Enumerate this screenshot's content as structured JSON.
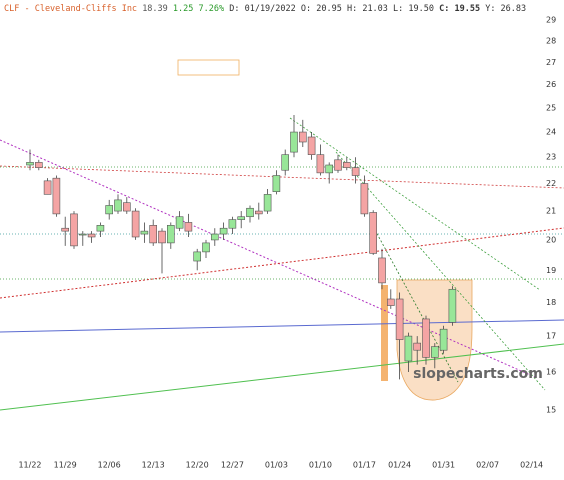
{
  "chart_data": {
    "type": "candlestick",
    "header": {
      "symbol": "CLF - Cleveland-Cliffs Inc",
      "last": "18.39",
      "change": "1.25",
      "change_pct": "7.26%",
      "date": "D: 01/19/2022",
      "open": "O: 20.95",
      "high": "H: 21.03",
      "low": "L: 19.50",
      "close": "C: 19.55",
      "y": "Y: 26.83"
    },
    "watermark": "slopecharts.com",
    "categories": [
      "11/22",
      null,
      null,
      null,
      "11/29",
      null,
      null,
      null,
      null,
      "12/06",
      null,
      null,
      null,
      null,
      "12/13",
      null,
      null,
      null,
      null,
      "12/20",
      null,
      null,
      null,
      "12/27",
      null,
      null,
      null,
      null,
      "01/03",
      null,
      null,
      null,
      null,
      "01/10",
      null,
      null,
      null,
      null,
      "01/17",
      null,
      null,
      null,
      "01/24",
      null,
      null,
      null,
      null,
      "01/31",
      null,
      null,
      null,
      null,
      "02/07",
      null,
      null,
      null,
      null,
      "02/14",
      null
    ],
    "open": [
      22.7,
      22.8,
      22.1,
      22.2,
      20.4,
      20.9,
      20.2,
      20.2,
      20.3,
      20.9,
      21.0,
      21.3,
      21.0,
      20.2,
      20.5,
      20.3,
      19.9,
      20.4,
      20.6,
      19.3,
      19.6,
      20.0,
      20.2,
      20.4,
      20.7,
      20.8,
      21.0,
      21.0,
      21.7,
      22.5,
      23.2,
      24.0,
      23.8,
      23.1,
      22.4,
      22.9,
      22.8,
      22.6,
      22.0,
      20.95,
      19.4,
      18.1,
      18.1,
      16.3,
      16.8,
      17.5,
      16.4,
      16.6,
      17.4,
      null,
      null,
      null,
      null,
      null,
      null,
      null,
      null,
      null,
      null
    ],
    "high": [
      23.3,
      22.9,
      22.2,
      22.3,
      20.8,
      21.0,
      20.3,
      20.3,
      20.6,
      21.4,
      21.6,
      21.5,
      21.1,
      20.6,
      20.7,
      20.4,
      20.6,
      21.0,
      20.9,
      19.7,
      20.0,
      20.4,
      20.6,
      20.8,
      21.0,
      21.2,
      21.3,
      21.8,
      22.5,
      23.3,
      24.7,
      24.5,
      24.0,
      23.5,
      22.8,
      23.1,
      23.0,
      23.0,
      22.3,
      21.03,
      19.7,
      18.4,
      18.3,
      17.1,
      17.0,
      17.6,
      16.8,
      17.3,
      18.5,
      null,
      null,
      null,
      null,
      null,
      null,
      null,
      null,
      null,
      null
    ],
    "low": [
      22.5,
      22.5,
      21.6,
      20.8,
      19.8,
      19.7,
      19.8,
      19.9,
      20.1,
      20.7,
      20.9,
      20.9,
      20.0,
      19.9,
      19.8,
      18.9,
      19.7,
      20.3,
      20.1,
      19.0,
      19.4,
      19.8,
      20.0,
      20.2,
      20.4,
      20.6,
      20.7,
      20.9,
      21.6,
      22.3,
      23.0,
      23.4,
      22.9,
      22.3,
      22.0,
      22.4,
      22.5,
      22.0,
      20.8,
      19.5,
      18.4,
      17.8,
      15.8,
      16.0,
      16.2,
      16.2,
      16.1,
      16.5,
      17.3,
      null,
      null,
      null,
      null,
      null,
      null,
      null,
      null,
      null,
      null
    ],
    "close": [
      22.8,
      22.6,
      21.6,
      20.9,
      20.3,
      19.8,
      20.2,
      20.1,
      20.5,
      21.2,
      21.4,
      21.0,
      20.1,
      20.3,
      19.9,
      19.9,
      20.5,
      20.8,
      20.3,
      19.6,
      19.9,
      20.2,
      20.4,
      20.7,
      20.8,
      21.1,
      20.9,
      21.6,
      22.3,
      23.1,
      24.0,
      23.6,
      23.1,
      22.4,
      22.7,
      22.5,
      22.6,
      22.3,
      20.9,
      19.55,
      18.6,
      17.9,
      16.9,
      17.0,
      16.6,
      16.4,
      16.7,
      17.2,
      18.4,
      null,
      null,
      null,
      null,
      null,
      null,
      null,
      null,
      null,
      null
    ],
    "up_color": "#98e698",
    "down_color": "#f4a4a4",
    "ylim": [
      14,
      30
    ],
    "yticks": [
      15,
      16,
      17,
      18,
      19,
      20,
      21,
      22,
      23,
      24,
      25,
      26,
      27,
      28,
      29
    ],
    "log_scale": true,
    "grid": false
  }
}
